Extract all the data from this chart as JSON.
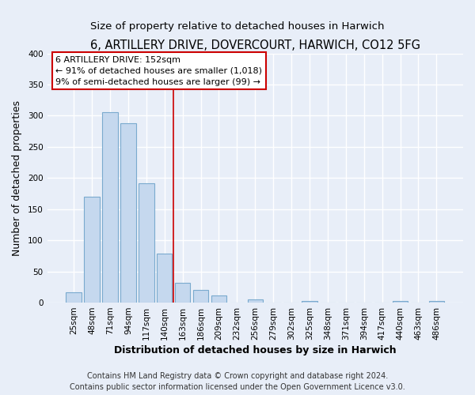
{
  "title": "6, ARTILLERY DRIVE, DOVERCOURT, HARWICH, CO12 5FG",
  "subtitle": "Size of property relative to detached houses in Harwich",
  "xlabel": "Distribution of detached houses by size in Harwich",
  "ylabel": "Number of detached properties",
  "bar_labels": [
    "25sqm",
    "48sqm",
    "71sqm",
    "94sqm",
    "117sqm",
    "140sqm",
    "163sqm",
    "186sqm",
    "209sqm",
    "232sqm",
    "256sqm",
    "279sqm",
    "302sqm",
    "325sqm",
    "348sqm",
    "371sqm",
    "394sqm",
    "417sqm",
    "440sqm",
    "463sqm",
    "486sqm"
  ],
  "bar_values": [
    17,
    170,
    305,
    288,
    192,
    79,
    32,
    20,
    11,
    0,
    5,
    0,
    0,
    3,
    0,
    0,
    0,
    0,
    2,
    0,
    2
  ],
  "bar_color": "#c5d8ee",
  "bar_edge_color": "#7aaace",
  "ylim": [
    0,
    400
  ],
  "yticks": [
    0,
    50,
    100,
    150,
    200,
    250,
    300,
    350,
    400
  ],
  "property_line_x": 5.5,
  "property_line_color": "#cc0000",
  "annotation_title": "6 ARTILLERY DRIVE: 152sqm",
  "annotation_line1": "← 91% of detached houses are smaller (1,018)",
  "annotation_line2": "9% of semi-detached houses are larger (99) →",
  "annotation_box_facecolor": "#ffffff",
  "annotation_box_edge_color": "#cc0000",
  "footer_line1": "Contains HM Land Registry data © Crown copyright and database right 2024.",
  "footer_line2": "Contains public sector information licensed under the Open Government Licence v3.0.",
  "background_color": "#e8eef8",
  "grid_color": "#ffffff",
  "title_fontsize": 10.5,
  "subtitle_fontsize": 9.5,
  "axis_label_fontsize": 9,
  "tick_fontsize": 7.5,
  "annotation_fontsize": 8,
  "footer_fontsize": 7
}
